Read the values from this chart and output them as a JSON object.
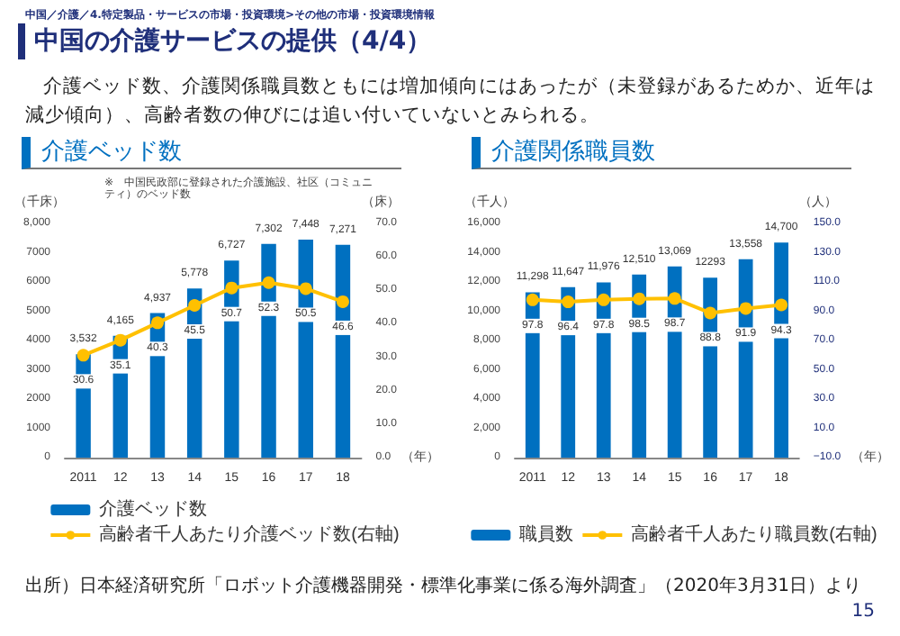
{
  "chart_data": [
    {
      "type": "other",
      "title": "中国の介護サービスの提供（4/4）",
      "subtitle": "介護ベッド数、介護関係職員数ともには増加傾向にはあったが（未登録があるためか、近年は減少傾向）、高齢者数の伸びには追い付いていないとみられる。",
      "annotations": [
        "中国／介護／4.特定製品・サービスの市場・投資環境>その他の市場・投資環境情報",
        "出所）日本経済研究所「ロボット介護機器開発・標準化事業に係る海外調査」（2020年3月31日）より",
        "15"
      ]
    },
    {
      "type": "bar",
      "title": "介護ベッド数",
      "annotations": [
        "※　中国民政部に登録された介護施設、社区（コミュニティ）のベッド数"
      ],
      "xlabel": "（年）",
      "ylabel": "（千床）",
      "y2label": "（床）",
      "categories": [
        "2011",
        "12",
        "13",
        "14",
        "15",
        "16",
        "17",
        "18"
      ],
      "series": [
        {
          "name": "介護ベッド数",
          "color": "#0070c0",
          "values": [
            3532,
            4165,
            4937,
            5778,
            6727,
            7302,
            7448,
            7271
          ],
          "value_labels": [
            "3,532",
            "4,165",
            "4,937",
            "5,778",
            "6,727",
            "7,302",
            "7,448",
            "7,271"
          ]
        },
        {
          "name": "高齢者千人あたり介護ベッド数(右軸)",
          "type": "line",
          "axis": "y2",
          "color": "#ffc000",
          "values": [
            30.6,
            35.1,
            40.3,
            45.5,
            50.7,
            52.3,
            50.5,
            46.6
          ],
          "value_labels": [
            "30.6",
            "35.1",
            "40.3",
            "45.5",
            "50.7",
            "52.3",
            "50.5",
            "46.6"
          ]
        }
      ],
      "ylim": [
        0,
        8000
      ],
      "yticks": [
        0,
        1000,
        2000,
        3000,
        4000,
        5000,
        6000,
        7000,
        {
          "value": 8000,
          "label": "8,000"
        }
      ],
      "y2lim": [
        0,
        70
      ],
      "y2ticks": [
        {
          "value": 0,
          "label": "0.0"
        },
        {
          "value": 10,
          "label": "10.0"
        },
        {
          "value": 20,
          "label": "20.0"
        },
        {
          "value": 30,
          "label": "30.0"
        },
        {
          "value": 40,
          "label": "40.0"
        },
        {
          "value": 50,
          "label": "50.0"
        },
        {
          "value": 60,
          "label": "60.0"
        },
        {
          "value": 70,
          "label": "70.0"
        }
      ],
      "legend": "bottom",
      "marker": "circle"
    },
    {
      "type": "bar",
      "title": "介護関係職員数",
      "xlabel": "（年）",
      "ylabel": "（千人）",
      "y2label": "（人）",
      "categories": [
        "2011",
        "12",
        "13",
        "14",
        "15",
        "16",
        "17",
        "18"
      ],
      "series": [
        {
          "name": "職員数",
          "color": "#0070c0",
          "values": [
            11298,
            11647,
            11976,
            12510,
            13069,
            12293,
            13558,
            14700
          ],
          "value_labels": [
            "11,298",
            "11,647",
            "11,976",
            "12,510",
            "13,069",
            "12293",
            "13,558",
            "14,700"
          ]
        },
        {
          "name": "高齢者千人あたり職員数(右軸)",
          "type": "line",
          "axis": "y2",
          "color": "#ffc000",
          "values": [
            97.8,
            96.4,
            97.8,
            98.5,
            98.7,
            88.8,
            91.9,
            94.3
          ],
          "value_labels": [
            "97.8",
            "96.4",
            "97.8",
            "98.5",
            "98.7",
            "88.8",
            "91.9",
            "94.3"
          ]
        }
      ],
      "ylim": [
        0,
        16000
      ],
      "yticks": [
        0,
        {
          "value": 2000,
          "label": "2,000"
        },
        {
          "value": 4000,
          "label": "4,000"
        },
        {
          "value": 6000,
          "label": "6,000"
        },
        {
          "value": 8000,
          "label": "8,000"
        },
        {
          "value": 10000,
          "label": "10,000"
        },
        {
          "value": 12000,
          "label": "12,000"
        },
        {
          "value": 14000,
          "label": "14,000"
        },
        {
          "value": 16000,
          "label": "16,000"
        }
      ],
      "y2lim": [
        -10,
        150
      ],
      "y2ticks": [
        {
          "value": -10,
          "label": "−10.0"
        },
        {
          "value": 10,
          "label": "10.0"
        },
        {
          "value": 30,
          "label": "30.0"
        },
        {
          "value": 50,
          "label": "50.0"
        },
        {
          "value": 70,
          "label": "70.0"
        },
        {
          "value": 90,
          "label": "90.0"
        },
        {
          "value": 110,
          "label": "110.0"
        },
        {
          "value": 130,
          "label": "130.0"
        },
        {
          "value": 150,
          "label": "150.0"
        }
      ],
      "legend": "bottom",
      "marker": "circle"
    }
  ]
}
